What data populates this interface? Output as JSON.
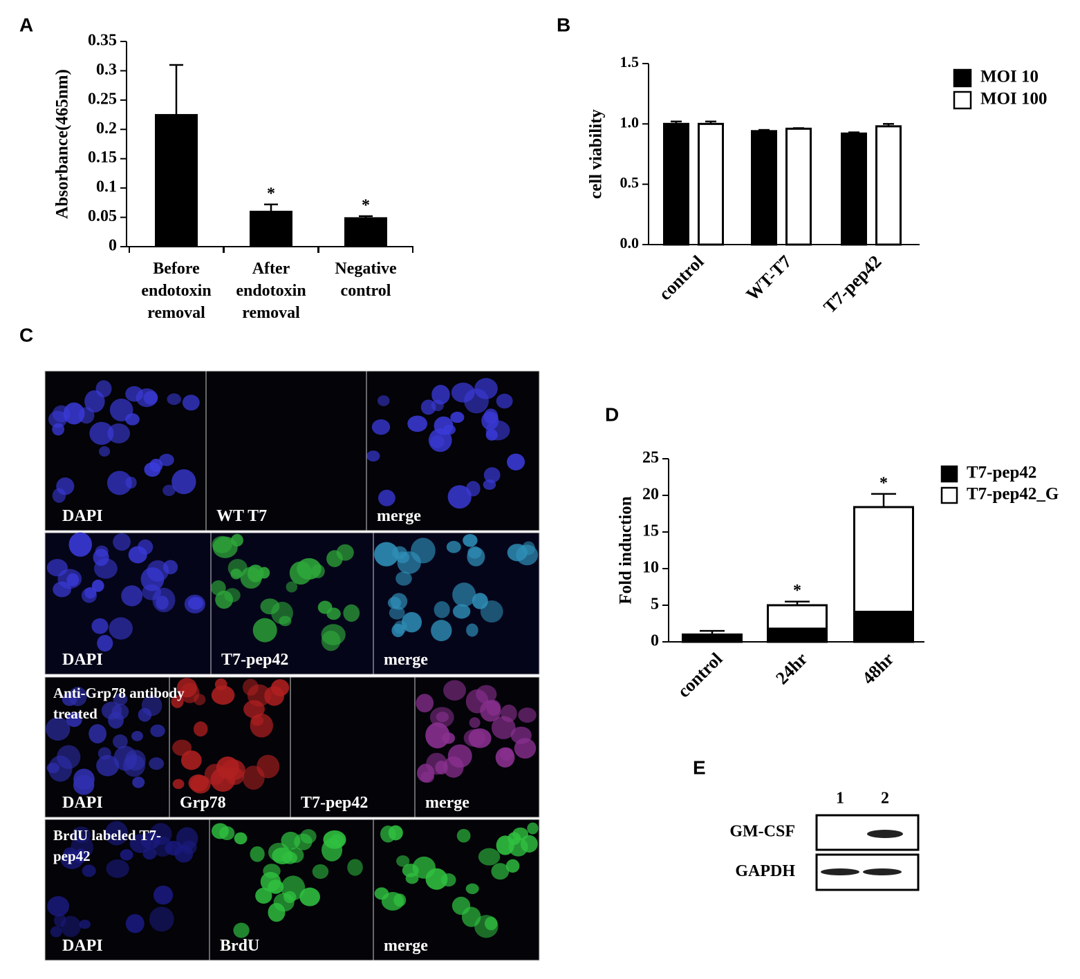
{
  "chart_data": [
    {
      "type": "bar",
      "ylabel": "Absorbance(465nm)",
      "categories": [
        "Before endotoxin removal",
        "After endotoxin removal",
        "Negative control"
      ],
      "values": [
        0.225,
        0.06,
        0.049
      ],
      "errors": [
        0.085,
        0.012,
        0.003
      ],
      "color": "#000000",
      "significance": [
        null,
        "*",
        "*"
      ],
      "ylim": [
        0,
        0.35
      ],
      "yticks": [
        0,
        0.05,
        0.1,
        0.15,
        0.2,
        0.25,
        0.3,
        0.35
      ],
      "xtick_rotation": 0
    },
    {
      "type": "bar",
      "ylabel": "cell viability",
      "categories": [
        "control",
        "WT-T7",
        "T7-pep42"
      ],
      "series": [
        {
          "name": "MOI 10",
          "color": "#000000",
          "values": [
            1.0,
            0.94,
            0.92
          ],
          "errors": [
            0.02,
            0.01,
            0.01
          ]
        },
        {
          "name": "MOI 100",
          "color": "#ffffff",
          "values": [
            1.0,
            0.96,
            0.98
          ],
          "errors": [
            0.02,
            0.005,
            0.02
          ]
        }
      ],
      "ylim": [
        0,
        1.5
      ],
      "yticks": [
        {
          "value": 0,
          "label": "0.0"
        },
        {
          "value": 0.5,
          "label": "0.5"
        },
        {
          "value": 1,
          "label": "1.0"
        },
        {
          "value": 1.5,
          "label": "1.5"
        }
      ],
      "legend": "upper right",
      "xtick_rotation": -45
    },
    {
      "type": "bar",
      "stacked": true,
      "ylabel": "Fold induction",
      "categories": [
        "control",
        "24hr",
        "48hr"
      ],
      "series": [
        {
          "name": "T7-pep42",
          "color": "#000000",
          "values": [
            1.0,
            1.8,
            4.1
          ],
          "errors": [
            0.5,
            0.2,
            0.3
          ],
          "significance": [
            null,
            null,
            "*"
          ]
        },
        {
          "name": "T7-pep42_G",
          "color": "#ffffff",
          "values": [
            null,
            3.2,
            14.3
          ],
          "errors": [
            null,
            0.5,
            1.8
          ],
          "significance": [
            null,
            "*",
            "*"
          ]
        }
      ],
      "ylim": [
        0,
        25
      ],
      "yticks": [
        0,
        5,
        10,
        15,
        20,
        25
      ],
      "legend": "upper right",
      "xtick_rotation": -45
    }
  ],
  "panels": [
    "A",
    "B",
    "C",
    "D",
    "E"
  ],
  "microscopy": {
    "rows": [
      {
        "labels": [
          "DAPI",
          "WT T7",
          "merge"
        ]
      },
      {
        "labels": [
          "DAPI",
          "T7-pep42",
          "merge"
        ]
      },
      {
        "note": "Anti-Grp78 antibody treated",
        "labels": [
          "DAPI",
          "Grp78",
          "T7-pep42",
          "merge"
        ]
      },
      {
        "note": "BrdU labeled T7-pep42",
        "labels": [
          "DAPI",
          "BrdU",
          "merge"
        ]
      }
    ]
  },
  "blot": {
    "lanes": [
      "1",
      "2"
    ],
    "bands": [
      "GM-CSF",
      "GAPDH"
    ]
  }
}
